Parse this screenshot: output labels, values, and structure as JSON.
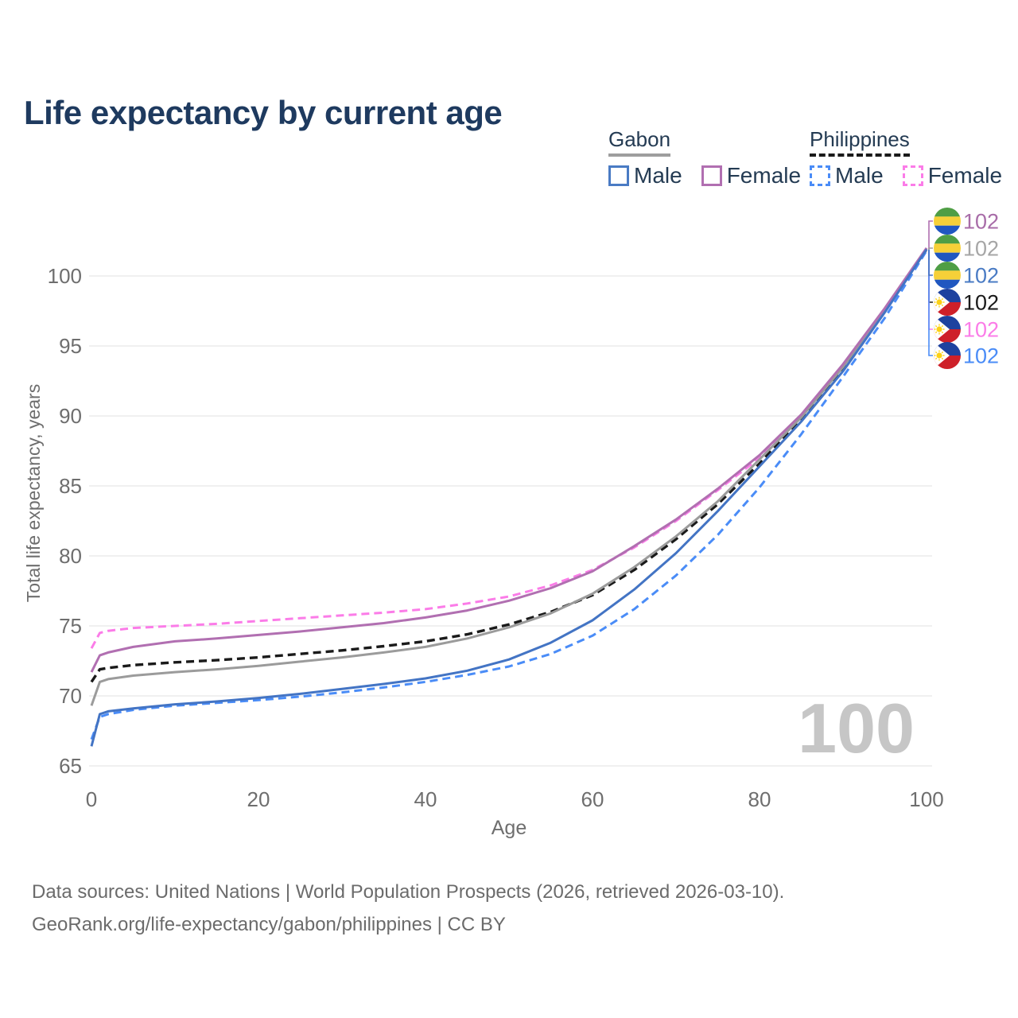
{
  "title": "Life expectancy by current age",
  "colors": {
    "title_text": "#1e3a5f",
    "legend_text": "#243b53",
    "axis_text": "#6e6e6e",
    "gridline": "#e7e7e7",
    "watermark": "#c6c6c6"
  },
  "legend": {
    "groups": [
      {
        "name": "Gabon",
        "underline_style": "solid",
        "underline_color": "#9e9e9e",
        "items": [
          {
            "label": "Male",
            "color": "#4a7bc4",
            "box_style": "solid"
          },
          {
            "label": "Female",
            "color": "#b16fb1",
            "box_style": "solid"
          }
        ]
      },
      {
        "name": "Philippines",
        "underline_style": "dashed",
        "underline_color": "#1a1a1a",
        "items": [
          {
            "label": "Male",
            "color": "#4a8cf7",
            "box_style": "dashed"
          },
          {
            "label": "Female",
            "color": "#fb7ce8",
            "box_style": "dashed"
          }
        ]
      }
    ]
  },
  "chart_data": {
    "type": "line",
    "xlabel": "Age",
    "ylabel": "Total life expectancy, years",
    "x": [
      0,
      1,
      2,
      5,
      10,
      15,
      20,
      25,
      30,
      35,
      40,
      45,
      50,
      55,
      60,
      65,
      70,
      75,
      80,
      85,
      90,
      95,
      100
    ],
    "xticks": [
      0,
      20,
      40,
      60,
      80,
      100
    ],
    "yticks": [
      65,
      70,
      75,
      80,
      85,
      90,
      95,
      100
    ],
    "xlim": [
      0,
      100
    ],
    "ylim": [
      65,
      102.5
    ],
    "grid": "horizontal",
    "age_indicator": "100",
    "series": [
      {
        "name": "Gabon Female",
        "country": "Gabon",
        "group": "Female",
        "style": "solid",
        "color": "#b16fb1",
        "values": [
          71.7,
          72.9,
          73.1,
          73.5,
          73.9,
          74.1,
          74.35,
          74.6,
          74.9,
          75.2,
          75.6,
          76.1,
          76.8,
          77.7,
          78.9,
          80.7,
          82.6,
          84.8,
          87.2,
          90.1,
          93.7,
          97.7,
          102.0
        ]
      },
      {
        "name": "Gabon Both sexes",
        "country": "Gabon",
        "group": "Both sexes",
        "style": "solid",
        "color": "#9b9b9b",
        "values": [
          69.3,
          71.0,
          71.2,
          71.45,
          71.7,
          71.9,
          72.15,
          72.45,
          72.75,
          73.1,
          73.5,
          74.1,
          74.9,
          75.9,
          77.3,
          79.2,
          81.4,
          83.9,
          86.9,
          89.9,
          93.5,
          97.6,
          101.95
        ]
      },
      {
        "name": "Gabon Male",
        "country": "Gabon",
        "group": "Male",
        "style": "solid",
        "color": "#4374c4",
        "values": [
          66.4,
          68.7,
          68.9,
          69.1,
          69.4,
          69.6,
          69.85,
          70.15,
          70.5,
          70.85,
          71.25,
          71.8,
          72.6,
          73.8,
          75.4,
          77.6,
          80.2,
          83.2,
          86.4,
          89.6,
          93.2,
          97.4,
          101.9
        ]
      },
      {
        "name": "Philippines Both sexes",
        "country": "Philippines",
        "group": "Both sexes",
        "style": "dashed",
        "color": "#1a1a1a",
        "values": [
          71.0,
          71.9,
          72.0,
          72.2,
          72.4,
          72.55,
          72.75,
          73.0,
          73.25,
          73.55,
          73.9,
          74.4,
          75.1,
          76.0,
          77.2,
          79.0,
          81.2,
          83.7,
          86.6,
          89.8,
          93.4,
          97.5,
          101.9
        ]
      },
      {
        "name": "Philippines Female",
        "country": "Philippines",
        "group": "Female",
        "style": "dashed",
        "color": "#fb7ce8",
        "values": [
          73.4,
          74.5,
          74.65,
          74.85,
          75.0,
          75.15,
          75.35,
          75.55,
          75.75,
          75.95,
          76.2,
          76.6,
          77.1,
          77.9,
          79.0,
          80.6,
          82.5,
          84.7,
          87.0,
          90.0,
          93.6,
          97.6,
          101.95
        ]
      },
      {
        "name": "Philippines Male",
        "country": "Philippines",
        "group": "Male",
        "style": "dashed",
        "color": "#4a8cf7",
        "values": [
          66.9,
          68.5,
          68.7,
          69.0,
          69.3,
          69.5,
          69.7,
          69.95,
          70.25,
          70.6,
          71.0,
          71.5,
          72.1,
          73.0,
          74.3,
          76.2,
          78.6,
          81.5,
          84.9,
          88.7,
          92.8,
          97.0,
          101.8
        ]
      }
    ],
    "end_labels": [
      {
        "flag": "gabon",
        "value": "102",
        "color": "#a86ca8",
        "series": "Gabon Female"
      },
      {
        "flag": "gabon",
        "value": "102",
        "color": "#a6a6a6",
        "series": "Gabon Both sexes"
      },
      {
        "flag": "gabon",
        "value": "102",
        "color": "#4a7bc4",
        "series": "Gabon Male"
      },
      {
        "flag": "philippines",
        "value": "102",
        "color": "#1a1a1a",
        "series": "Philippines Both sexes"
      },
      {
        "flag": "philippines",
        "value": "102",
        "color": "#fb7ce8",
        "series": "Philippines Female"
      },
      {
        "flag": "philippines",
        "value": "102",
        "color": "#4a8cf7",
        "series": "Philippines Male"
      }
    ],
    "flag_colors": {
      "gabon": {
        "green": "#4f9e45",
        "yellow": "#f6d038",
        "blue": "#2057c0"
      },
      "philippines": {
        "blue": "#1e429f",
        "red": "#ce2029",
        "white": "#ffffff",
        "sun": "#fcd116"
      }
    }
  },
  "footer": {
    "line1": "Data sources: United Nations | World Population Prospects (2026, retrieved 2026-03-10).",
    "line2": "GeoRank.org/life-expectancy/gabon/philippines | CC BY"
  }
}
